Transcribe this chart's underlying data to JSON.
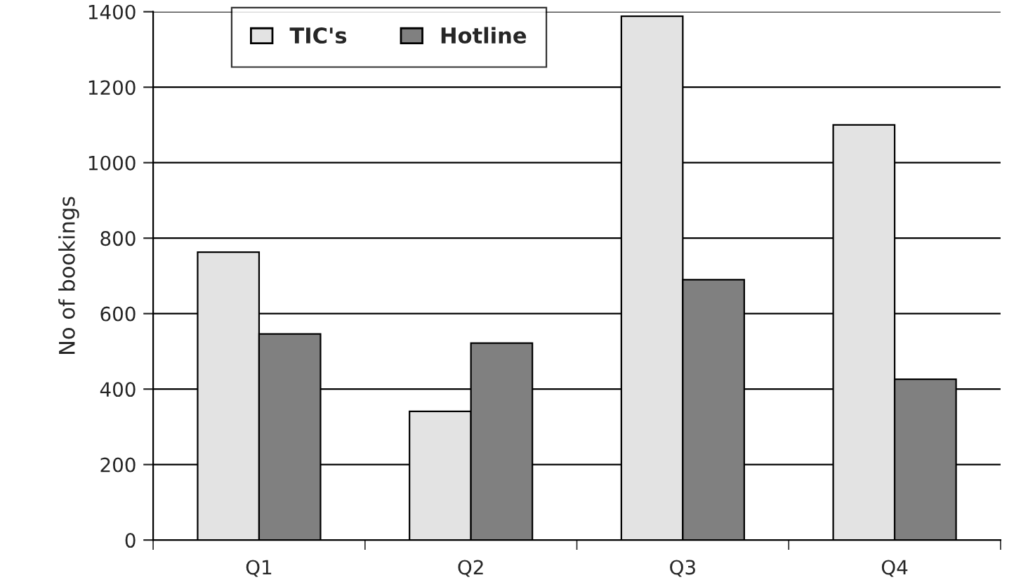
{
  "chart_data": {
    "type": "bar",
    "ylabel": "No of bookings",
    "categories": [
      "Q1",
      "Q2",
      "Q3",
      "Q4"
    ],
    "series": [
      {
        "name": "TIC's",
        "color": "#e3e3e3",
        "values": [
          763,
          341,
          1388,
          1100
        ]
      },
      {
        "name": "Hotline",
        "color": "#808080",
        "values": [
          546,
          522,
          690,
          426
        ]
      }
    ],
    "ylim": [
      0,
      1400
    ],
    "yticks": [
      0,
      200,
      400,
      600,
      800,
      1000,
      1200,
      1400
    ],
    "grid": "y",
    "legend": "top"
  }
}
